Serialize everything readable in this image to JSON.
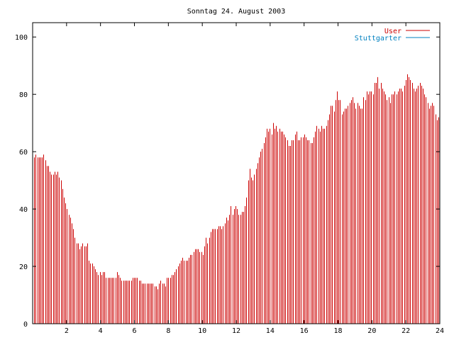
{
  "chart_data": {
    "type": "bar",
    "title": "Sonntag 24. August 2003",
    "xlabel": "",
    "ylabel": "",
    "xlim": [
      0,
      24
    ],
    "ylim": [
      0,
      105
    ],
    "x_ticks": [
      2,
      4,
      6,
      8,
      10,
      12,
      14,
      16,
      18,
      20,
      22,
      24
    ],
    "y_ticks": [
      0,
      20,
      40,
      60,
      80,
      100
    ],
    "grid": false,
    "legend_position": "top-right",
    "series": [
      {
        "name": "User",
        "color": "#cc0000",
        "values": [
          58,
          59,
          58,
          58,
          58,
          58,
          59,
          57,
          55,
          55,
          53,
          52,
          52,
          53,
          52,
          53,
          51,
          50,
          47,
          44,
          42,
          40,
          38,
          37,
          35,
          33,
          30,
          28,
          28,
          26,
          27,
          28,
          27,
          27,
          28,
          22,
          21,
          21,
          20,
          19,
          18,
          17,
          18,
          17,
          18,
          18,
          16,
          16,
          16,
          16,
          16,
          16,
          16,
          18,
          17,
          16,
          15,
          15,
          15,
          15,
          15,
          15,
          15,
          16,
          16,
          16,
          16,
          15,
          15,
          14,
          14,
          14,
          14,
          14,
          14,
          14,
          14,
          13,
          13,
          12,
          14,
          15,
          14,
          14,
          13,
          16,
          16,
          16,
          17,
          17,
          18,
          19,
          20,
          21,
          22,
          23,
          22,
          22,
          22,
          23,
          24,
          24,
          25,
          26,
          26,
          26,
          25,
          25,
          24,
          27,
          30,
          28,
          30,
          32,
          33,
          33,
          33,
          33,
          34,
          34,
          33,
          34,
          35,
          37,
          36,
          38,
          41,
          38,
          40,
          41,
          40,
          38,
          38,
          39,
          39,
          41,
          44,
          50,
          54,
          51,
          50,
          52,
          54,
          56,
          58,
          60,
          61,
          63,
          65,
          68,
          67,
          68,
          66,
          70,
          68,
          69,
          67,
          68,
          67,
          67,
          66,
          65,
          64,
          62,
          62,
          64,
          64,
          66,
          67,
          64,
          64,
          65,
          65,
          66,
          65,
          64,
          64,
          63,
          63,
          65,
          67,
          69,
          68,
          67,
          69,
          68,
          68,
          69,
          71,
          73,
          76,
          76,
          74,
          78,
          81,
          78,
          78,
          73,
          74,
          75,
          75,
          76,
          77,
          78,
          79,
          77,
          75,
          77,
          76,
          75,
          75,
          79,
          78,
          81,
          80,
          81,
          81,
          80,
          84,
          84,
          86,
          82,
          84,
          82,
          81,
          80,
          78,
          79,
          77,
          80,
          80,
          81,
          80,
          81,
          82,
          82,
          81,
          83,
          85,
          87,
          86,
          85,
          84,
          82,
          81,
          82,
          83,
          84,
          83,
          82,
          80,
          79,
          77,
          75,
          76,
          77,
          76,
          73,
          71,
          72
        ]
      },
      {
        "name": "Stuttgarter",
        "color": "#0080c0",
        "values": []
      }
    ]
  }
}
